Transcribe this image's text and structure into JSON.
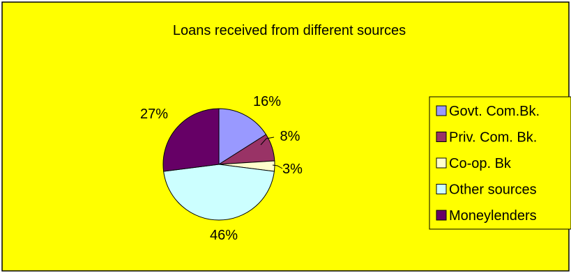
{
  "chart_data": {
    "type": "pie",
    "title": "Loans received from different sources",
    "categories": [
      "Govt. Com.Bk.",
      "Priv. Com. Bk.",
      "Co-op. Bk",
      "Other sources",
      "Moneylenders"
    ],
    "values": [
      16,
      8,
      3,
      46,
      27
    ],
    "data_labels": [
      "16%",
      "8%",
      "3%",
      "46%",
      "27%"
    ],
    "colors": [
      "#9999ff",
      "#993366",
      "#ffffcc",
      "#ccffff",
      "#660066"
    ],
    "background": "#ffff00",
    "legend_position": "right"
  }
}
